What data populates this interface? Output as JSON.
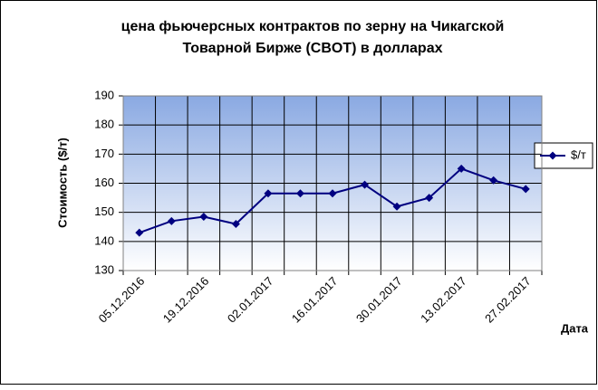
{
  "chart_data": {
    "type": "line",
    "title": [
      "цена фьючерсных контрактов по зерну на Чикагской",
      "Товарной Бирже (CBOT) в долларах"
    ],
    "y_label": "Стоимость ($/т)",
    "x_label": "Дата",
    "categories": [
      "05.12.2016",
      null,
      "19.12.2016",
      null,
      "02.01.2017",
      null,
      "16.01.2017",
      null,
      "30.01.2017",
      null,
      "13.02.2017",
      null,
      "27.02.2017"
    ],
    "series": [
      {
        "name": "$/т",
        "color": "#000080",
        "values": [
          143,
          147,
          148.5,
          146,
          156.5,
          156.5,
          156.5,
          159.5,
          152,
          155,
          165,
          161,
          158
        ]
      }
    ],
    "ylim": [
      130,
      190
    ],
    "yticks": [
      130,
      140,
      150,
      160,
      170,
      180,
      190
    ],
    "grid": true,
    "legend": "right"
  }
}
